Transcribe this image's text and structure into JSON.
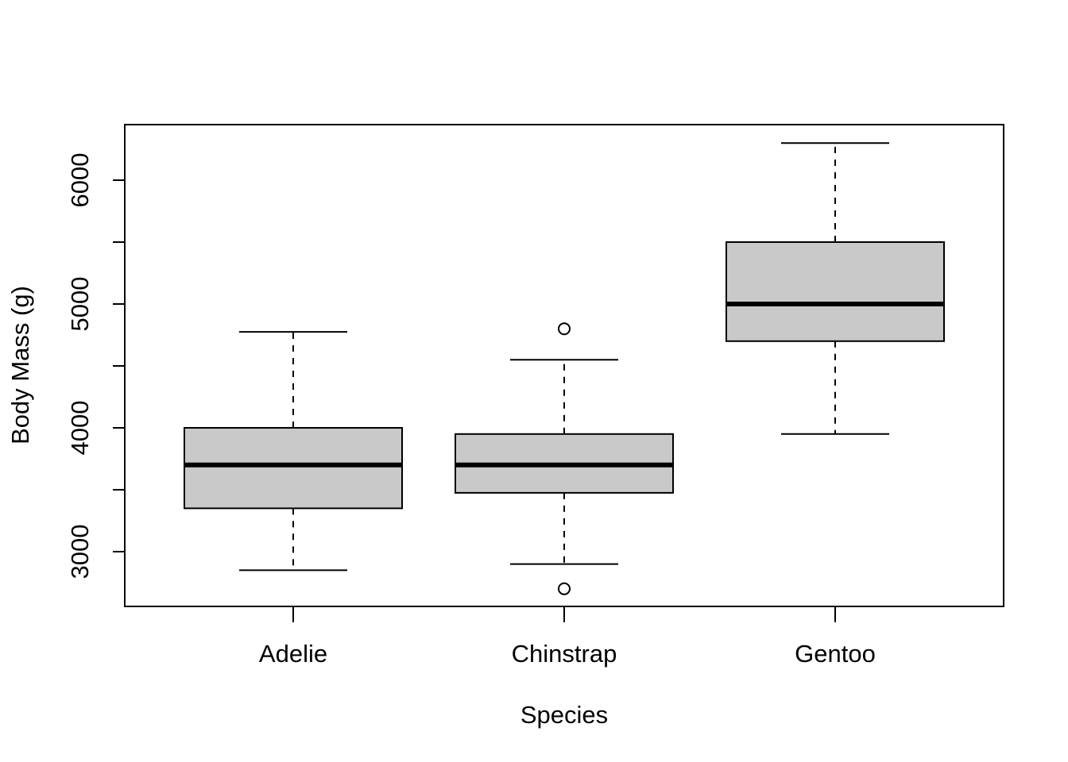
{
  "chart_data": {
    "type": "box",
    "title": "",
    "xlabel": "Species",
    "ylabel": "Body Mass (g)",
    "categories": [
      "Adelie",
      "Chinstrap",
      "Gentoo"
    ],
    "boxes": [
      {
        "category": "Adelie",
        "whisker_low": 2850,
        "q1": 3350,
        "median": 3700,
        "q3": 4000,
        "whisker_high": 4775,
        "outliers": []
      },
      {
        "category": "Chinstrap",
        "whisker_low": 2900,
        "q1": 3475,
        "median": 3700,
        "q3": 3950,
        "whisker_high": 4550,
        "outliers": [
          4800,
          2700
        ]
      },
      {
        "category": "Gentoo",
        "whisker_low": 3950,
        "q1": 4700,
        "median": 5000,
        "q3": 5500,
        "whisker_high": 6300,
        "outliers": []
      }
    ],
    "yticks": [
      3000,
      4000,
      5000,
      6000
    ],
    "yticks_minor": [
      3500,
      4500,
      5500
    ],
    "ytick_labels": [
      "3000",
      "4000",
      "5000",
      "6000"
    ],
    "ylim": [
      2560,
      6450
    ],
    "box_fill": "#c9c9c9",
    "line_color": "#000000",
    "grid": false,
    "legend": "none"
  }
}
